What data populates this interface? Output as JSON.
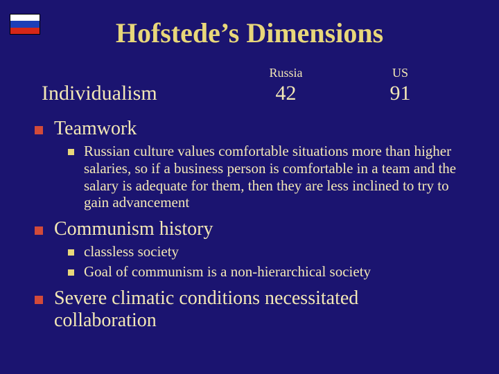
{
  "colors": {
    "background": "#1b1470",
    "title": "#e8d77a",
    "body_text": "#f3e8b6",
    "bullet_lvl1": "#d24a3a",
    "bullet_lvl2": "#e8d77a",
    "flag_white": "#ffffff",
    "flag_blue": "#1c3fb7",
    "flag_red": "#d62718"
  },
  "title": "Hofstede’s Dimensions",
  "table": {
    "col1_header": "Russia",
    "col2_header": "US",
    "row_label": "Individualism",
    "val1": "42",
    "val2": "91"
  },
  "items": {
    "teamwork": {
      "label": "Teamwork",
      "sub1": "Russian culture values comfortable situations more than higher salaries, so if a business person is comfortable in a team and the salary is adequate for them, then they are less inclined to try to gain advancement"
    },
    "communism": {
      "label": "Communism history",
      "sub1": "classless society",
      "sub2": "Goal of communism is a non-hierarchical society"
    },
    "climate": {
      "label": "Severe climatic conditions necessitated collaboration"
    }
  }
}
